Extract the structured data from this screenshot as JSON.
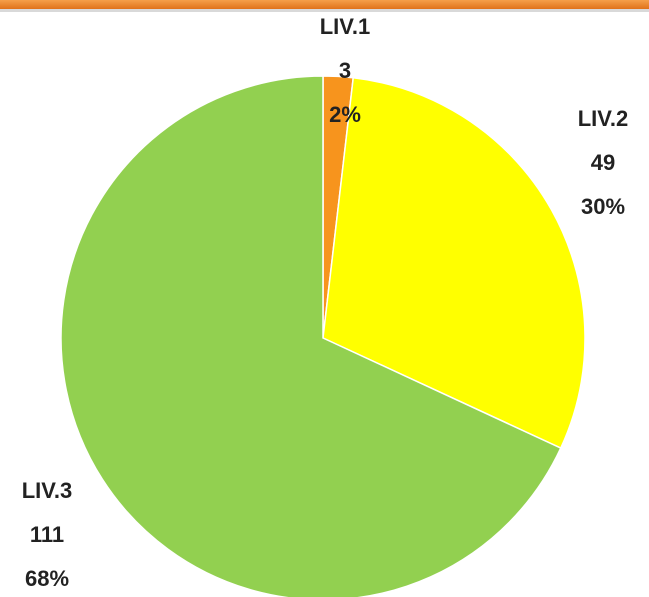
{
  "chart_data": {
    "type": "pie",
    "categories": [
      "LIV.1",
      "LIV.2",
      "LIV.3"
    ],
    "values": [
      3,
      49,
      111
    ],
    "percent_labels": [
      "2%",
      "30%",
      "68%"
    ],
    "colors": [
      "#f7941d",
      "#ffff00",
      "#92d050"
    ]
  }
}
